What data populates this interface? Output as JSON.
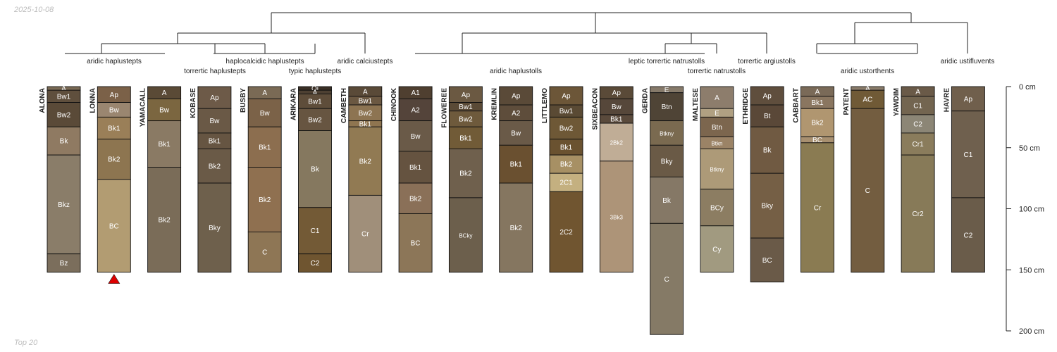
{
  "date_label": "2025-10-08",
  "footer_label": "Top 20",
  "chart_data": {
    "type": "soil-profile-sketch",
    "depth_unit": "cm",
    "depth_range": [
      0,
      200
    ],
    "depth_ticks": [
      {
        "value": 0,
        "label": "0 cm"
      },
      {
        "value": 50,
        "label": "50 cm"
      },
      {
        "value": 100,
        "label": "100 cm"
      },
      {
        "value": 150,
        "label": "150 cm"
      },
      {
        "value": 200,
        "label": "200 cm"
      }
    ],
    "marker": {
      "profile": "LONNA",
      "shape": "triangle",
      "color": "#dd0000"
    },
    "groups": [
      {
        "label": "aridic haplustepts",
        "profiles": [
          "ALONA",
          "LONNA"
        ]
      },
      {
        "label": "torrertic haplustepts",
        "profiles": [
          "YAMACALL",
          "KOBASE",
          "BUSBY"
        ]
      },
      {
        "label": "haplocalcidic haplustepts",
        "profiles": [
          "BUSBY",
          "ARIKARA"
        ]
      },
      {
        "label": "typic haplustepts",
        "profiles": [
          "ARIKARA"
        ]
      },
      {
        "label": "aridic calciustepts",
        "profiles": [
          "CAMBETH"
        ]
      },
      {
        "label": "aridic haplustolls",
        "profiles": [
          "CHINOOK",
          "FLOWEREE",
          "KREMLIN",
          "LITTLEMO",
          "SIXBEACON"
        ]
      },
      {
        "label": "leptic torrertic natrustolls",
        "profiles": [
          "GERDA"
        ]
      },
      {
        "label": "torrertic natrustolls",
        "profiles": [
          "MALTESE"
        ]
      },
      {
        "label": "torrertic argiustolls",
        "profiles": [
          "ETHRIDGE"
        ]
      },
      {
        "label": "aridic ustorthents",
        "profiles": [
          "CABBART",
          "PATENT",
          "YAWDIM"
        ]
      },
      {
        "label": "aridic ustifluvents",
        "profiles": [
          "HAVRE"
        ]
      }
    ],
    "profiles": [
      {
        "name": "ALONA",
        "horizons": [
          {
            "name": "A",
            "top": 0,
            "bottom": 3,
            "color": "#7a6a55"
          },
          {
            "name": "Bw1",
            "top": 3,
            "bottom": 13,
            "color": "#5f4f3d"
          },
          {
            "name": "Bw2",
            "top": 13,
            "bottom": 33,
            "color": "#5a4a38"
          },
          {
            "name": "Bk",
            "top": 33,
            "bottom": 56,
            "color": "#8f7a62"
          },
          {
            "name": "Bkz",
            "top": 56,
            "bottom": 137,
            "color": "#8a7d69"
          },
          {
            "name": "Bz",
            "top": 137,
            "bottom": 152,
            "color": "#7b6e5c"
          }
        ]
      },
      {
        "name": "LONNA",
        "horizons": [
          {
            "name": "Ap",
            "top": 0,
            "bottom": 13,
            "color": "#7b6148"
          },
          {
            "name": "Bw",
            "top": 13,
            "bottom": 25,
            "color": "#9a8670"
          },
          {
            "name": "Bk1",
            "top": 25,
            "bottom": 43,
            "color": "#9a7f58"
          },
          {
            "name": "Bk2",
            "top": 43,
            "bottom": 76,
            "color": "#8d7550"
          },
          {
            "name": "BC",
            "top": 76,
            "bottom": 152,
            "color": "#b29c72"
          }
        ]
      },
      {
        "name": "YAMACALL",
        "horizons": [
          {
            "name": "A",
            "top": 0,
            "bottom": 10,
            "color": "#5a4a36"
          },
          {
            "name": "Bw",
            "top": 10,
            "bottom": 28,
            "color": "#7b6640"
          },
          {
            "name": "Bk1",
            "top": 28,
            "bottom": 66,
            "color": "#8a7a64"
          },
          {
            "name": "Bk2",
            "top": 66,
            "bottom": 152,
            "color": "#7a6c58"
          }
        ]
      },
      {
        "name": "KOBASE",
        "horizons": [
          {
            "name": "Ap",
            "top": 0,
            "bottom": 18,
            "color": "#6d5a48"
          },
          {
            "name": "Bw",
            "top": 18,
            "bottom": 38,
            "color": "#6a5946"
          },
          {
            "name": "Bk1",
            "top": 38,
            "bottom": 51,
            "color": "#665542"
          },
          {
            "name": "Bk2",
            "top": 51,
            "bottom": 79,
            "color": "#6a5a47"
          },
          {
            "name": "Bky",
            "top": 79,
            "bottom": 152,
            "color": "#6e604c"
          }
        ]
      },
      {
        "name": "BUSBY",
        "horizons": [
          {
            "name": "A",
            "top": 0,
            "bottom": 10,
            "color": "#7a6a55"
          },
          {
            "name": "Bw",
            "top": 10,
            "bottom": 33,
            "color": "#7b6248"
          },
          {
            "name": "Bk1",
            "top": 33,
            "bottom": 66,
            "color": "#8c6e4f"
          },
          {
            "name": "Bk2",
            "top": 66,
            "bottom": 119,
            "color": "#8f7050"
          },
          {
            "name": "C",
            "top": 119,
            "bottom": 152,
            "color": "#8e7655"
          }
        ]
      },
      {
        "name": "ARIKARA",
        "horizons": [
          {
            "name": "Oi",
            "top": 0,
            "bottom": 3,
            "color": "#3a2f25"
          },
          {
            "name": "A",
            "top": 3,
            "bottom": 6,
            "color": "#4d4032"
          },
          {
            "name": "Bw1",
            "top": 6,
            "bottom": 18,
            "color": "#5e4d3a"
          },
          {
            "name": "Bw2",
            "top": 18,
            "bottom": 36,
            "color": "#675541"
          },
          {
            "name": "Bk",
            "top": 36,
            "bottom": 99,
            "color": "#85785f"
          },
          {
            "name": "C1",
            "top": 99,
            "bottom": 137,
            "color": "#735a36"
          },
          {
            "name": "C2",
            "top": 137,
            "bottom": 152,
            "color": "#6f5530"
          }
        ]
      },
      {
        "name": "CAMBETH",
        "horizons": [
          {
            "name": "A",
            "top": 0,
            "bottom": 8,
            "color": "#5a4a38"
          },
          {
            "name": "Bw1",
            "top": 8,
            "bottom": 15,
            "color": "#6b5842"
          },
          {
            "name": "Bw2",
            "top": 15,
            "bottom": 28,
            "color": "#8d7452"
          },
          {
            "name": "Bk1",
            "top": 28,
            "bottom": 33,
            "color": "#8f7550"
          },
          {
            "name": "Bk2",
            "top": 33,
            "bottom": 89,
            "color": "#917a53"
          },
          {
            "name": "Cr",
            "top": 89,
            "bottom": 152,
            "color": "#a08f7a"
          }
        ]
      },
      {
        "name": "CHINOOK",
        "horizons": [
          {
            "name": "A1",
            "top": 0,
            "bottom": 10,
            "color": "#4f3f30"
          },
          {
            "name": "A2",
            "top": 10,
            "bottom": 28,
            "color": "#54443a"
          },
          {
            "name": "Bw",
            "top": 28,
            "bottom": 53,
            "color": "#6a5a48"
          },
          {
            "name": "Bk1",
            "top": 53,
            "bottom": 79,
            "color": "#655340"
          },
          {
            "name": "Bk2",
            "top": 79,
            "bottom": 104,
            "color": "#8a7058"
          },
          {
            "name": "BC",
            "top": 104,
            "bottom": 152,
            "color": "#8c7658"
          }
        ]
      },
      {
        "name": "FLOWEREE",
        "horizons": [
          {
            "name": "Ap",
            "top": 0,
            "bottom": 13,
            "color": "#6b5942"
          },
          {
            "name": "Bw1",
            "top": 13,
            "bottom": 20,
            "color": "#5a4a36"
          },
          {
            "name": "Bw2",
            "top": 20,
            "bottom": 33,
            "color": "#6e5a3c"
          },
          {
            "name": "Bk1",
            "top": 33,
            "bottom": 51,
            "color": "#715b37"
          },
          {
            "name": "Bk2",
            "top": 51,
            "bottom": 91,
            "color": "#6f604d"
          },
          {
            "name": "BCky",
            "top": 91,
            "bottom": 152,
            "color": "#6c5f4c"
          }
        ]
      },
      {
        "name": "KREMLIN",
        "horizons": [
          {
            "name": "Ap",
            "top": 0,
            "bottom": 15,
            "color": "#5a4a38"
          },
          {
            "name": "A2",
            "top": 15,
            "bottom": 28,
            "color": "#5e4d3b"
          },
          {
            "name": "Bw",
            "top": 28,
            "bottom": 48,
            "color": "#6a5a48"
          },
          {
            "name": "Bk1",
            "top": 48,
            "bottom": 79,
            "color": "#6a5030"
          },
          {
            "name": "Bk2",
            "top": 79,
            "bottom": 152,
            "color": "#857660"
          }
        ]
      },
      {
        "name": "LITTLEMO",
        "horizons": [
          {
            "name": "Ap",
            "top": 0,
            "bottom": 15,
            "color": "#6c5638"
          },
          {
            "name": "Bw1",
            "top": 15,
            "bottom": 25,
            "color": "#5a4a34"
          },
          {
            "name": "Bw2",
            "top": 25,
            "bottom": 43,
            "color": "#6e5836"
          },
          {
            "name": "Bk1",
            "top": 43,
            "bottom": 56,
            "color": "#6a5230"
          },
          {
            "name": "Bk2",
            "top": 56,
            "bottom": 71,
            "color": "#a79064"
          },
          {
            "name": "2C1",
            "top": 71,
            "bottom": 86,
            "color": "#c4b080"
          },
          {
            "name": "2C2",
            "top": 86,
            "bottom": 152,
            "color": "#705530"
          }
        ]
      },
      {
        "name": "SIXBEACON",
        "horizons": [
          {
            "name": "Ap",
            "top": 0,
            "bottom": 10,
            "color": "#5a4a38"
          },
          {
            "name": "Bw",
            "top": 10,
            "bottom": 23,
            "color": "#56473a"
          },
          {
            "name": "Bk1",
            "top": 23,
            "bottom": 30,
            "color": "#5a4a3c"
          },
          {
            "name": "2Bk2",
            "top": 30,
            "bottom": 61,
            "color": "#c0ad96"
          },
          {
            "name": "3Bk3",
            "top": 61,
            "bottom": 152,
            "color": "#ad9478"
          }
        ]
      },
      {
        "name": "GERDA",
        "horizons": [
          {
            "name": "E",
            "top": 0,
            "bottom": 5,
            "color": "#867a6a"
          },
          {
            "name": "Btn",
            "top": 5,
            "bottom": 28,
            "color": "#4f4436"
          },
          {
            "name": "Btkny",
            "top": 28,
            "bottom": 48,
            "color": "#7a6a50"
          },
          {
            "name": "Bky",
            "top": 48,
            "bottom": 74,
            "color": "#6a5a46"
          },
          {
            "name": "Bk",
            "top": 74,
            "bottom": 112,
            "color": "#857866"
          },
          {
            "name": "C",
            "top": 112,
            "bottom": 203,
            "color": "#857a66"
          }
        ]
      },
      {
        "name": "MALTESE",
        "horizons": [
          {
            "name": "A",
            "top": 0,
            "bottom": 18,
            "color": "#8d7d6c"
          },
          {
            "name": "E",
            "top": 18,
            "bottom": 25,
            "color": "#b0a082"
          },
          {
            "name": "Btn",
            "top": 25,
            "bottom": 41,
            "color": "#7c664e"
          },
          {
            "name": "Btkn",
            "top": 41,
            "bottom": 51,
            "color": "#9b8366"
          },
          {
            "name": "Btkny",
            "top": 51,
            "bottom": 84,
            "color": "#ad9a78"
          },
          {
            "name": "BCy",
            "top": 84,
            "bottom": 114,
            "color": "#8c7d62"
          },
          {
            "name": "Cy",
            "top": 114,
            "bottom": 152,
            "color": "#a19a80"
          }
        ]
      },
      {
        "name": "ETHRIDGE",
        "horizons": [
          {
            "name": "Ap",
            "top": 0,
            "bottom": 15,
            "color": "#5f4e3d"
          },
          {
            "name": "Bt",
            "top": 15,
            "bottom": 33,
            "color": "#5a4838"
          },
          {
            "name": "Bk",
            "top": 33,
            "bottom": 71,
            "color": "#705a42"
          },
          {
            "name": "Bky",
            "top": 71,
            "bottom": 124,
            "color": "#755f45"
          },
          {
            "name": "BC",
            "top": 124,
            "bottom": 160,
            "color": "#6a5a48"
          }
        ]
      },
      {
        "name": "CABBART",
        "horizons": [
          {
            "name": "A",
            "top": 0,
            "bottom": 8,
            "color": "#7a6a58"
          },
          {
            "name": "Bk1",
            "top": 8,
            "bottom": 18,
            "color": "#8a7660"
          },
          {
            "name": "Bk2",
            "top": 18,
            "bottom": 41,
            "color": "#b09670"
          },
          {
            "name": "BC",
            "top": 41,
            "bottom": 46,
            "color": "#a89070"
          },
          {
            "name": "Cr",
            "top": 46,
            "bottom": 152,
            "color": "#8a7b52"
          }
        ]
      },
      {
        "name": "PATENT",
        "horizons": [
          {
            "name": "A",
            "top": 0,
            "bottom": 3,
            "color": "#8b7d6b"
          },
          {
            "name": "AC",
            "top": 3,
            "bottom": 18,
            "color": "#705a36"
          },
          {
            "name": "C",
            "top": 18,
            "bottom": 152,
            "color": "#735d40"
          }
        ]
      },
      {
        "name": "YAWDIM",
        "horizons": [
          {
            "name": "A",
            "top": 0,
            "bottom": 8,
            "color": "#6a5a48"
          },
          {
            "name": "C1",
            "top": 8,
            "bottom": 23,
            "color": "#736550"
          },
          {
            "name": "C2",
            "top": 23,
            "bottom": 38,
            "color": "#8c8676"
          },
          {
            "name": "Cr1",
            "top": 38,
            "bottom": 56,
            "color": "#8a7c5c"
          },
          {
            "name": "Cr2",
            "top": 56,
            "bottom": 152,
            "color": "#877a58"
          }
        ]
      },
      {
        "name": "HAVRE",
        "horizons": [
          {
            "name": "Ap",
            "top": 0,
            "bottom": 20,
            "color": "#705f4c"
          },
          {
            "name": "C1",
            "top": 20,
            "bottom": 91,
            "color": "#6f604e"
          },
          {
            "name": "C2",
            "top": 91,
            "bottom": 152,
            "color": "#6a5c4a"
          }
        ]
      }
    ]
  }
}
